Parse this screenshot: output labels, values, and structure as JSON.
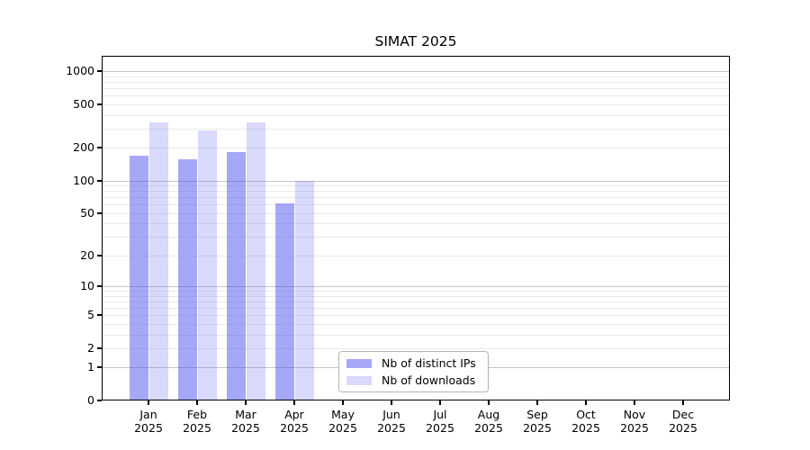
{
  "title": "SIMAT 2025",
  "chart_data": {
    "type": "bar",
    "title": "SIMAT 2025",
    "scale": "log1p",
    "categories": [
      "Jan",
      "Feb",
      "Mar",
      "Apr",
      "May",
      "Jun",
      "Jul",
      "Aug",
      "Sep",
      "Oct",
      "Nov",
      "Dec"
    ],
    "x_tick_line2": "2025",
    "series": [
      {
        "name": "Nb of distinct IPs",
        "color": "rgba(80,80,240,0.5)",
        "values": [
          170,
          158,
          183,
          62,
          null,
          null,
          null,
          null,
          null,
          null,
          null,
          null
        ]
      },
      {
        "name": "Nb of downloads",
        "color": "rgba(80,80,240,0.22)",
        "values": [
          340,
          285,
          340,
          100,
          null,
          null,
          null,
          null,
          null,
          null,
          null,
          null
        ]
      }
    ],
    "y_ticks": [
      0,
      1,
      2,
      5,
      10,
      20,
      50,
      100,
      200,
      500,
      1000
    ],
    "ylim": [
      0,
      1380
    ],
    "grid": true,
    "legend_position": "bottom-center",
    "colors": {
      "axis": "#000000",
      "grid_major": "#c4c4c4",
      "grid_minor": "#eaeaea",
      "legend_border": "#b5b5b5",
      "background": "#ffffff"
    }
  }
}
